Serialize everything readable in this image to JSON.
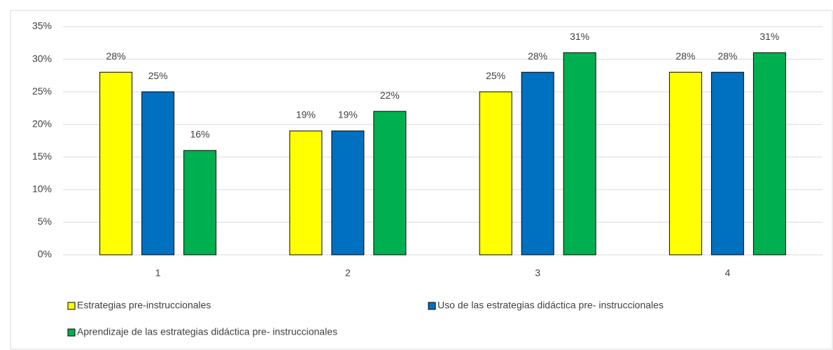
{
  "chart_data": {
    "type": "bar",
    "categories": [
      "1",
      "2",
      "3",
      "4"
    ],
    "series": [
      {
        "name": "Estrategias pre-instruccionales",
        "color": "#ffff00",
        "values": [
          28,
          19,
          25,
          28
        ],
        "value_labels": [
          "28%",
          "19%",
          "25%",
          "28%"
        ]
      },
      {
        "name": "Uso de las estrategias didáctica pre- instruccionales",
        "color": "#0070c0",
        "values": [
          25,
          19,
          28,
          28
        ],
        "value_labels": [
          "25%",
          "19%",
          "28%",
          "28%"
        ]
      },
      {
        "name": "Aprendizaje de las estrategias didáctica pre- instruccionales",
        "color": "#00b050",
        "values": [
          16,
          22,
          31,
          31
        ],
        "value_labels": [
          "16%",
          "22%",
          "31%",
          "31%"
        ]
      }
    ],
    "ylim": [
      0,
      35
    ],
    "yticks": [
      {
        "value": 0,
        "label": "0%"
      },
      {
        "value": 5,
        "label": "5%"
      },
      {
        "value": 10,
        "label": "10%"
      },
      {
        "value": 15,
        "label": "15%"
      },
      {
        "value": 20,
        "label": "20%"
      },
      {
        "value": 25,
        "label": "25%"
      },
      {
        "value": 30,
        "label": "30%"
      },
      {
        "value": 35,
        "label": "35%"
      }
    ],
    "grid": true,
    "legend": "bottom"
  }
}
